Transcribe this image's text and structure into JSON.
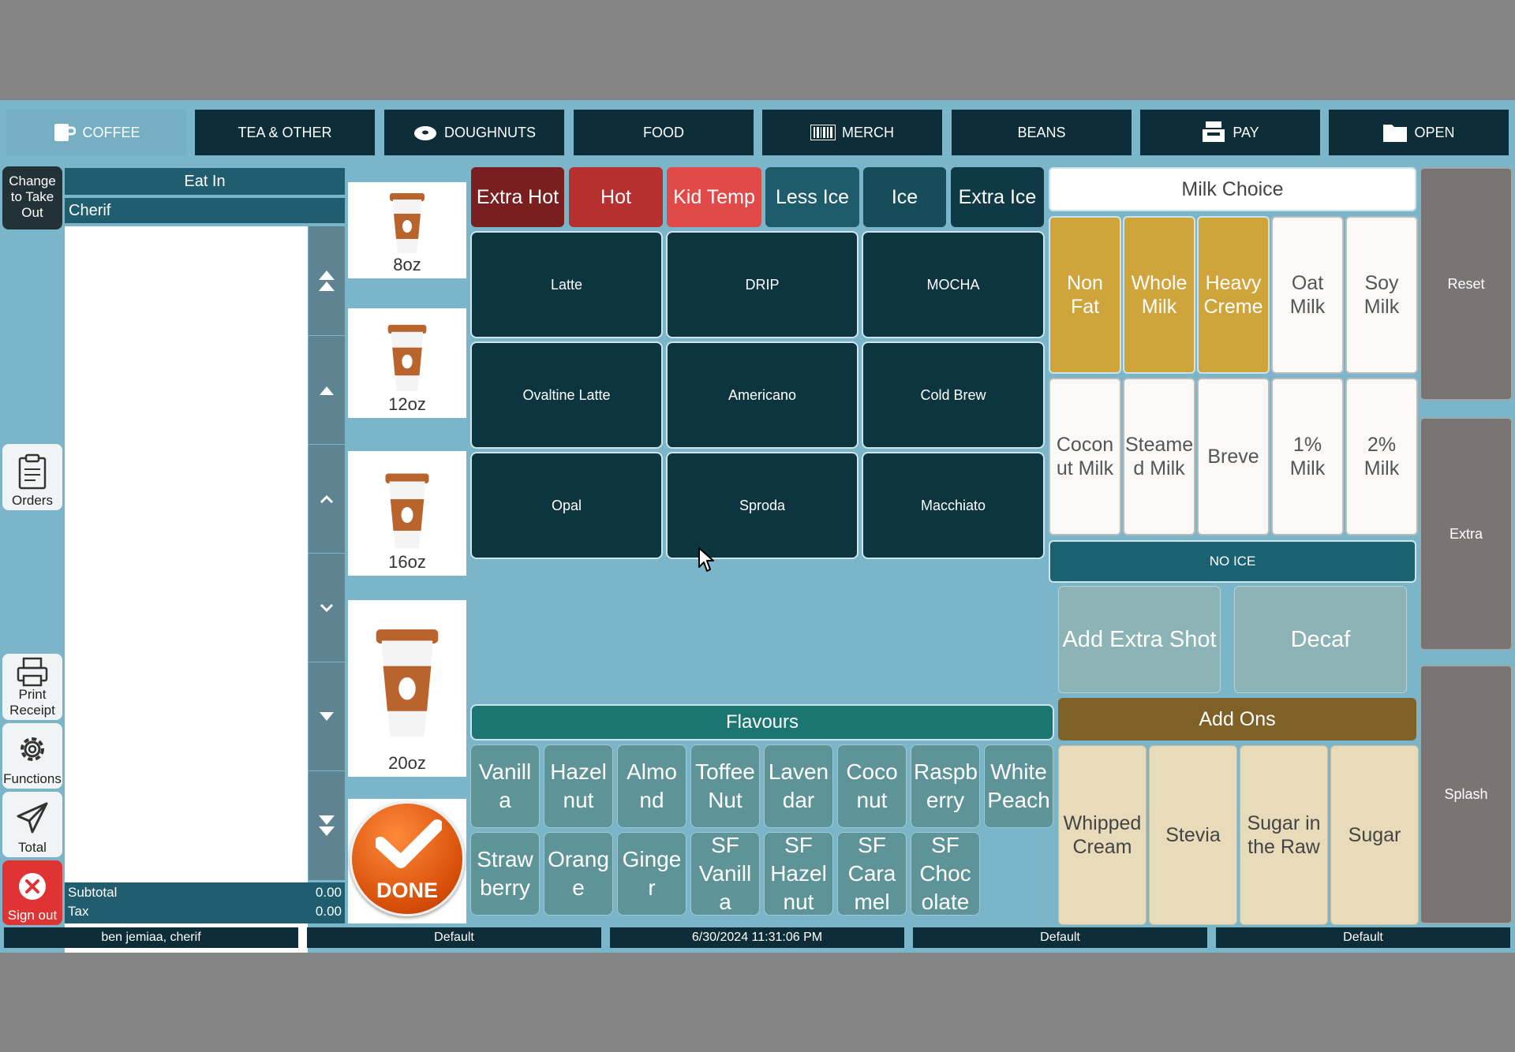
{
  "tabs": [
    {
      "label": "COFFEE",
      "icon": "coffee-cup-icon",
      "active": true
    },
    {
      "label": "TEA & OTHER",
      "icon": "",
      "active": false
    },
    {
      "label": "DOUGHNUTS",
      "icon": "doughnut-icon",
      "active": false
    },
    {
      "label": "FOOD",
      "icon": "",
      "active": false
    },
    {
      "label": "MERCH",
      "icon": "barcode-icon",
      "active": false
    },
    {
      "label": "BEANS",
      "icon": "",
      "active": false
    },
    {
      "label": "PAY",
      "icon": "register-icon",
      "active": false
    },
    {
      "label": "OPEN",
      "icon": "folder-icon",
      "active": false
    }
  ],
  "sidebar": {
    "change": "Change to Take Out",
    "orders": "Orders",
    "print": "Print Receipt",
    "functions": "Functions",
    "total": "Total",
    "signout": "Sign out"
  },
  "order": {
    "mode": "Eat In",
    "customer": "Cherif",
    "subtotal_label": "Subtotal",
    "subtotal_value": "0.00",
    "tax_label": "Tax",
    "tax_value": "0.00"
  },
  "sizes": [
    "8oz",
    "12oz",
    "16oz",
    "20oz"
  ],
  "done_label": "DONE",
  "temps": [
    {
      "label": "Extra Hot",
      "color": "#7a1f1f"
    },
    {
      "label": "Hot",
      "color": "#b73030"
    },
    {
      "label": "Kid Temp",
      "color": "#e04a48"
    },
    {
      "label": "Less Ice",
      "color": "#1e5c6b"
    },
    {
      "label": "Ice",
      "color": "#174c5a"
    },
    {
      "label": "Extra Ice",
      "color": "#0f3944"
    }
  ],
  "drinks": [
    "Latte",
    "DRIP",
    "MOCHA",
    "Ovaltine Latte",
    "Americano",
    "Cold Brew",
    "Opal",
    "Sproda",
    "Macchiato"
  ],
  "milk": {
    "title": "Milk Choice",
    "options": [
      {
        "label": "Non Fat",
        "style": "gold"
      },
      {
        "label": "Whole Milk",
        "style": "gold"
      },
      {
        "label": "Heavy Creme",
        "style": "gold"
      },
      {
        "label": "Oat Milk",
        "style": "white"
      },
      {
        "label": "Soy Milk",
        "style": "white"
      },
      {
        "label": "Cocon ut Milk",
        "style": "white"
      },
      {
        "label": "Steame d Milk",
        "style": "white"
      },
      {
        "label": "Breve",
        "style": "white"
      },
      {
        "label": "1% Milk",
        "style": "white"
      },
      {
        "label": "2% Milk",
        "style": "white"
      }
    ]
  },
  "no_ice": "NO ICE",
  "extras": {
    "shot": "Add Extra Shot",
    "decaf": "Decaf"
  },
  "flavours": {
    "title": "Flavours",
    "items": [
      "Vanill a",
      "Hazel nut",
      "Almo nd",
      "Toffee Nut",
      "Laven dar",
      "Coco nut",
      "Raspb erry",
      "White Peach",
      "Straw berry",
      "Orang e",
      "Ginge r",
      "SF Vanill a",
      "SF Hazel nut",
      "SF Cara mel",
      "SF Choc olate"
    ]
  },
  "addons": {
    "title": "Add Ons",
    "items": [
      "Whipped Cream",
      "Stevia",
      "Sugar in the Raw",
      "Sugar"
    ]
  },
  "right": {
    "reset": "Reset",
    "extra": "Extra",
    "splash": "Splash"
  },
  "status": [
    "ben jemiaa, cherif",
    "Default",
    "6/30/2024 11:31:06 PM",
    "Default",
    "Default"
  ]
}
